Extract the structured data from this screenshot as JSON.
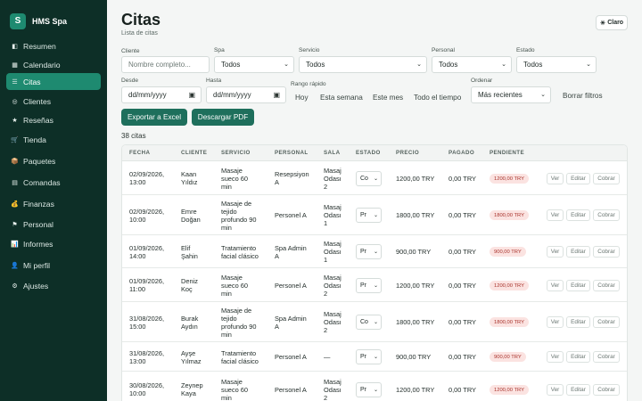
{
  "brand": {
    "logo_letter": "S",
    "name": "HMS Spa"
  },
  "sidebar": {
    "items": [
      {
        "label": "Resumen",
        "icon": "◧"
      },
      {
        "label": "Calendario",
        "icon": "▦"
      },
      {
        "label": "Citas",
        "icon": "☰",
        "active": true
      },
      {
        "label": "Clientes",
        "icon": "◎"
      },
      {
        "label": "Reseñas",
        "icon": "★"
      },
      {
        "label": "Tienda",
        "icon": "🛒"
      },
      {
        "label": "Paquetes",
        "icon": "📦"
      },
      {
        "label": "Comandas",
        "icon": "▤"
      },
      {
        "label": "Finanzas",
        "icon": "💰"
      },
      {
        "label": "Personal",
        "icon": "⚑"
      },
      {
        "label": "Informes",
        "icon": "📊"
      },
      {
        "label": "Mi perfil",
        "icon": "👤"
      },
      {
        "label": "Ajustes",
        "icon": "⚙"
      }
    ]
  },
  "header": {
    "title": "Citas",
    "subtitle": "Lista de citas",
    "theme_label": "Claro",
    "theme_icon": "☀"
  },
  "filters": {
    "cliente_label": "Cliente",
    "cliente_placeholder": "Nombre completo...",
    "spa_label": "Spa",
    "spa_value": "Todos",
    "servicio_label": "Servicio",
    "servicio_value": "Todos",
    "personal_label": "Personal",
    "personal_value": "Todos",
    "estado_label": "Estado",
    "estado_value": "Todos",
    "desde_label": "Desde",
    "desde_value": "dd/mm/yyyy",
    "hasta_label": "Hasta",
    "hasta_value": "dd/mm/yyyy",
    "rango_label": "Rango rápido",
    "rango_options": [
      "Hoy",
      "Esta semana",
      "Este mes",
      "Todo el tiempo"
    ],
    "ordenar_label": "Ordenar",
    "ordenar_value": "Más recientes",
    "clear_label": "Borrar filtros"
  },
  "actions": {
    "export_excel": "Exportar a Excel",
    "download_pdf": "Descargar PDF"
  },
  "count_text": "38 citas",
  "table": {
    "headers": [
      "FECHA",
      "CLIENTE",
      "SERVICIO",
      "PERSONAL",
      "SALA",
      "ESTADO",
      "PRECIO",
      "PAGADO",
      "PENDIENTE"
    ],
    "row_actions": [
      "Ver",
      "Editar",
      "Cobrar"
    ],
    "rows": [
      {
        "fecha": [
          "02/09/2026,",
          "13:00"
        ],
        "cliente": [
          "Kaan",
          "Yıldız"
        ],
        "servicio": [
          "Masaje",
          "sueco 60",
          "min"
        ],
        "personal": [
          "Resepsiyon",
          "A"
        ],
        "sala": [
          "Masaj",
          "Odası",
          "2"
        ],
        "estado": "Co",
        "precio": "1200,00 TRY",
        "pagado": "0,00 TRY",
        "pendiente": "1200,00 TRY"
      },
      {
        "fecha": [
          "02/09/2026,",
          "10:00"
        ],
        "cliente": [
          "Emre",
          "Doğan"
        ],
        "servicio": [
          "Masaje de",
          "tejido",
          "profundo 90",
          "min"
        ],
        "personal": [
          "Personel A"
        ],
        "sala": [
          "Masaj",
          "Odası",
          "1"
        ],
        "estado": "Pr",
        "precio": "1800,00 TRY",
        "pagado": "0,00 TRY",
        "pendiente": "1800,00 TRY"
      },
      {
        "fecha": [
          "01/09/2026,",
          "14:00"
        ],
        "cliente": [
          "Elif",
          "Şahin"
        ],
        "servicio": [
          "Tratamiento",
          "facial clásico"
        ],
        "personal": [
          "Spa Admin",
          "A"
        ],
        "sala": [
          "Masaj",
          "Odası",
          "1"
        ],
        "estado": "Pr",
        "precio": "900,00 TRY",
        "pagado": "0,00 TRY",
        "pendiente": "900,00 TRY"
      },
      {
        "fecha": [
          "01/09/2026,",
          "11:00"
        ],
        "cliente": [
          "Deniz",
          "Koç"
        ],
        "servicio": [
          "Masaje",
          "sueco 60",
          "min"
        ],
        "personal": [
          "Personel A"
        ],
        "sala": [
          "Masaj",
          "Odası",
          "2"
        ],
        "estado": "Pr",
        "precio": "1200,00 TRY",
        "pagado": "0,00 TRY",
        "pendiente": "1200,00 TRY"
      },
      {
        "fecha": [
          "31/08/2026,",
          "15:00"
        ],
        "cliente": [
          "Burak",
          "Aydın"
        ],
        "servicio": [
          "Masaje de",
          "tejido",
          "profundo 90",
          "min"
        ],
        "personal": [
          "Spa Admin",
          "A"
        ],
        "sala": [
          "Masaj",
          "Odası",
          "2"
        ],
        "estado": "Co",
        "precio": "1800,00 TRY",
        "pagado": "0,00 TRY",
        "pendiente": "1800,00 TRY"
      },
      {
        "fecha": [
          "31/08/2026,",
          "13:00"
        ],
        "cliente": [
          "Ayşe",
          "Yılmaz"
        ],
        "servicio": [
          "Tratamiento",
          "facial clásico"
        ],
        "personal": [
          "Personel A"
        ],
        "sala": [
          "—"
        ],
        "estado": "Pr",
        "precio": "900,00 TRY",
        "pagado": "0,00 TRY",
        "pendiente": "900,00 TRY"
      },
      {
        "fecha": [
          "30/08/2026,",
          "10:00"
        ],
        "cliente": [
          "Zeynep",
          "Kaya"
        ],
        "servicio": [
          "Masaje",
          "sueco 60",
          "min"
        ],
        "personal": [
          "Personel A"
        ],
        "sala": [
          "Masaj",
          "Odası",
          "2"
        ],
        "estado": "Pr",
        "precio": "1200,00 TRY",
        "pagado": "0,00 TRY",
        "pendiente": "1200,00 TRY"
      }
    ]
  },
  "colors": {
    "sidebar_bg": "#0d2f27",
    "accent": "#1e8a70",
    "button": "#1e6f5c",
    "pending_bg": "#fbe3e1",
    "pending_text": "#a8322b"
  }
}
